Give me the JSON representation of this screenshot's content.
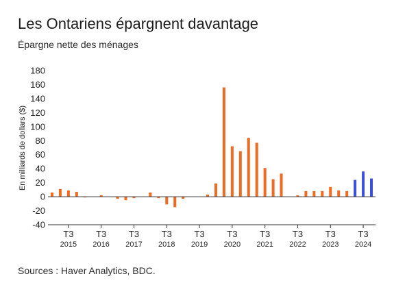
{
  "title": "Les Ontariens épargnent davantage",
  "subtitle": "Épargne nette des ménages",
  "source": "Sources : Haver Analytics, BDC.",
  "colors": {
    "historical": "#f26a21",
    "recent": "#3a4fd8",
    "axis": "#333333"
  },
  "chart_data": {
    "type": "bar",
    "ylabel": "En milliards de dollars ($)",
    "ylim": [
      -40,
      180
    ],
    "yticks": [
      180,
      160,
      140,
      120,
      100,
      80,
      60,
      40,
      20,
      0,
      -20,
      -40
    ],
    "x_tick_quarter_label": "T3",
    "years": [
      "2015",
      "2016",
      "2017",
      "2018",
      "2019",
      "2020",
      "2021",
      "2022",
      "2023",
      "2024"
    ],
    "first_quarter": "2015 T1",
    "values": [
      6,
      11,
      9,
      7,
      -1,
      0,
      2,
      0,
      -3,
      -5,
      -2,
      0,
      6,
      -2,
      -11,
      -15,
      -3,
      0,
      0,
      3,
      19,
      156,
      72,
      65,
      84,
      77,
      41,
      25,
      33,
      0,
      2,
      8,
      8,
      8,
      14,
      9,
      8,
      24,
      36,
      26
    ],
    "recent_start_index": 37
  }
}
